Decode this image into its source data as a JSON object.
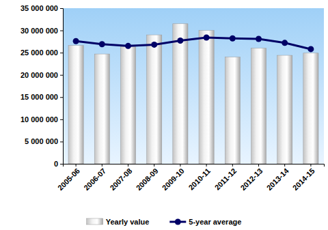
{
  "chart_data": {
    "type": "bar",
    "categories": [
      "2005-06",
      "2006-07",
      "2007-08",
      "2008-09",
      "2009-10",
      "2010-11",
      "2011-12",
      "2012-13",
      "2013-14",
      "2014-15"
    ],
    "series": [
      {
        "name": "Yearly value",
        "type": "bar",
        "color": "#f2f2f2",
        "values": [
          26600000,
          24700000,
          26300000,
          29000000,
          31500000,
          30000000,
          24000000,
          26000000,
          24400000,
          24900000
        ]
      },
      {
        "name": "5-year average",
        "type": "line",
        "color": "#000066",
        "marker": "circle",
        "values": [
          27600000,
          26900000,
          26500000,
          26800000,
          27700000,
          28400000,
          28200000,
          28100000,
          27200000,
          25800000
        ]
      }
    ],
    "ylim": [
      0,
      35000000
    ],
    "yticks": [
      {
        "value": 0,
        "label": "0"
      },
      {
        "value": 5000000,
        "label": "5 000 000"
      },
      {
        "value": 10000000,
        "label": "10 000 000"
      },
      {
        "value": 15000000,
        "label": "15 000 000"
      },
      {
        "value": 20000000,
        "label": "20 000 000"
      },
      {
        "value": 25000000,
        "label": "25 000 000"
      },
      {
        "value": 30000000,
        "label": "30 000 000"
      },
      {
        "value": 35000000,
        "label": "35 000 000"
      }
    ],
    "grid": false,
    "legend": "bottom"
  }
}
